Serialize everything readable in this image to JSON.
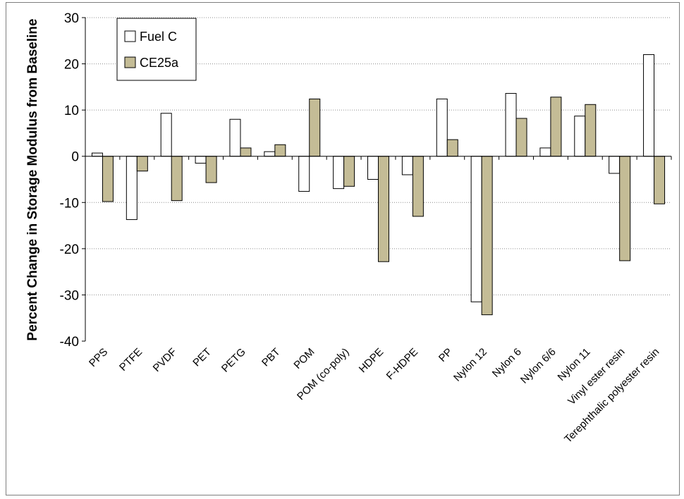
{
  "chart_data": {
    "type": "bar",
    "title": "",
    "xlabel": "",
    "ylabel": "Percent Change in Storage Modulus from Baseline",
    "ylim": [
      -40,
      30
    ],
    "yticks": [
      -40,
      -30,
      -20,
      -10,
      0,
      10,
      20,
      30
    ],
    "grid": "horizontal dotted",
    "legend_position": "top-left",
    "categories": [
      "PPS",
      "PTFE",
      "PVDF",
      "PET",
      "PETG",
      "PBT",
      "POM",
      "POM (co-poly)",
      "HDPE",
      "F-HDPE",
      "PP",
      "Nylon 12",
      "Nylon 6",
      "Nylon 6/6",
      "Nylon 11",
      "Vinyl ester resin",
      "Terephthalic polyester resin"
    ],
    "series": [
      {
        "name": "Fuel C",
        "color": "#ffffff",
        "values": [
          0.7,
          -13.7,
          9.3,
          -1.5,
          8.0,
          1.0,
          -7.6,
          -7.0,
          -5.0,
          -4.0,
          12.4,
          -31.5,
          13.6,
          1.8,
          8.7,
          -3.7,
          22.0
        ]
      },
      {
        "name": "CE25a",
        "color": "#c4bc96",
        "values": [
          -9.8,
          -3.2,
          -9.6,
          -5.7,
          1.8,
          2.5,
          12.4,
          -6.5,
          -22.8,
          -13.0,
          3.6,
          -34.3,
          8.2,
          12.8,
          11.2,
          -22.6,
          -10.3
        ]
      }
    ]
  }
}
